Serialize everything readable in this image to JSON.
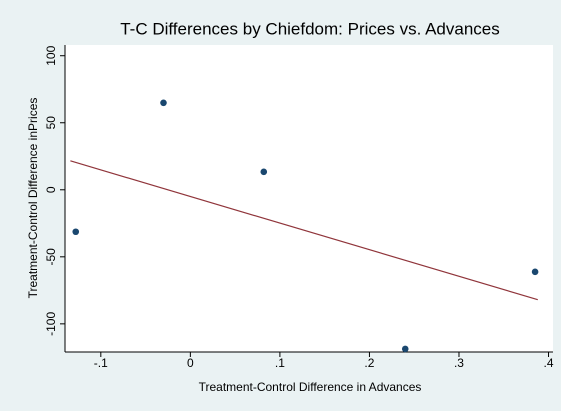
{
  "chart_data": {
    "type": "scatter",
    "title": "T-C Differences by Chiefdom: Prices vs. Advances",
    "xlabel": "Treatment-Control Difference in Advances",
    "ylabel": "Treatment-Control Difference inPrices",
    "xlim": [
      -0.14,
      0.405
    ],
    "ylim": [
      -121,
      108
    ],
    "xticks": [
      {
        "value": -0.1,
        "label": "-.1"
      },
      0,
      {
        "value": 0.1,
        "label": ".1"
      },
      {
        "value": 0.2,
        "label": ".2"
      },
      {
        "value": 0.3,
        "label": ".3"
      },
      {
        "value": 0.4,
        "label": ".4"
      }
    ],
    "yticks": [
      -100,
      -50,
      0,
      50,
      100
    ],
    "grid": false,
    "series": [
      {
        "type": "scatter",
        "color": "#1a476f",
        "x": [
          -0.128,
          -0.03,
          0.082,
          0.24,
          0.385
        ],
        "values": [
          -31.3,
          64.9,
          13.4,
          -118.7,
          -61.2
        ]
      },
      {
        "type": "line",
        "color": "#90353b",
        "x": [
          -0.134,
          0.388
        ],
        "values": [
          21.6,
          -82
        ]
      }
    ]
  }
}
